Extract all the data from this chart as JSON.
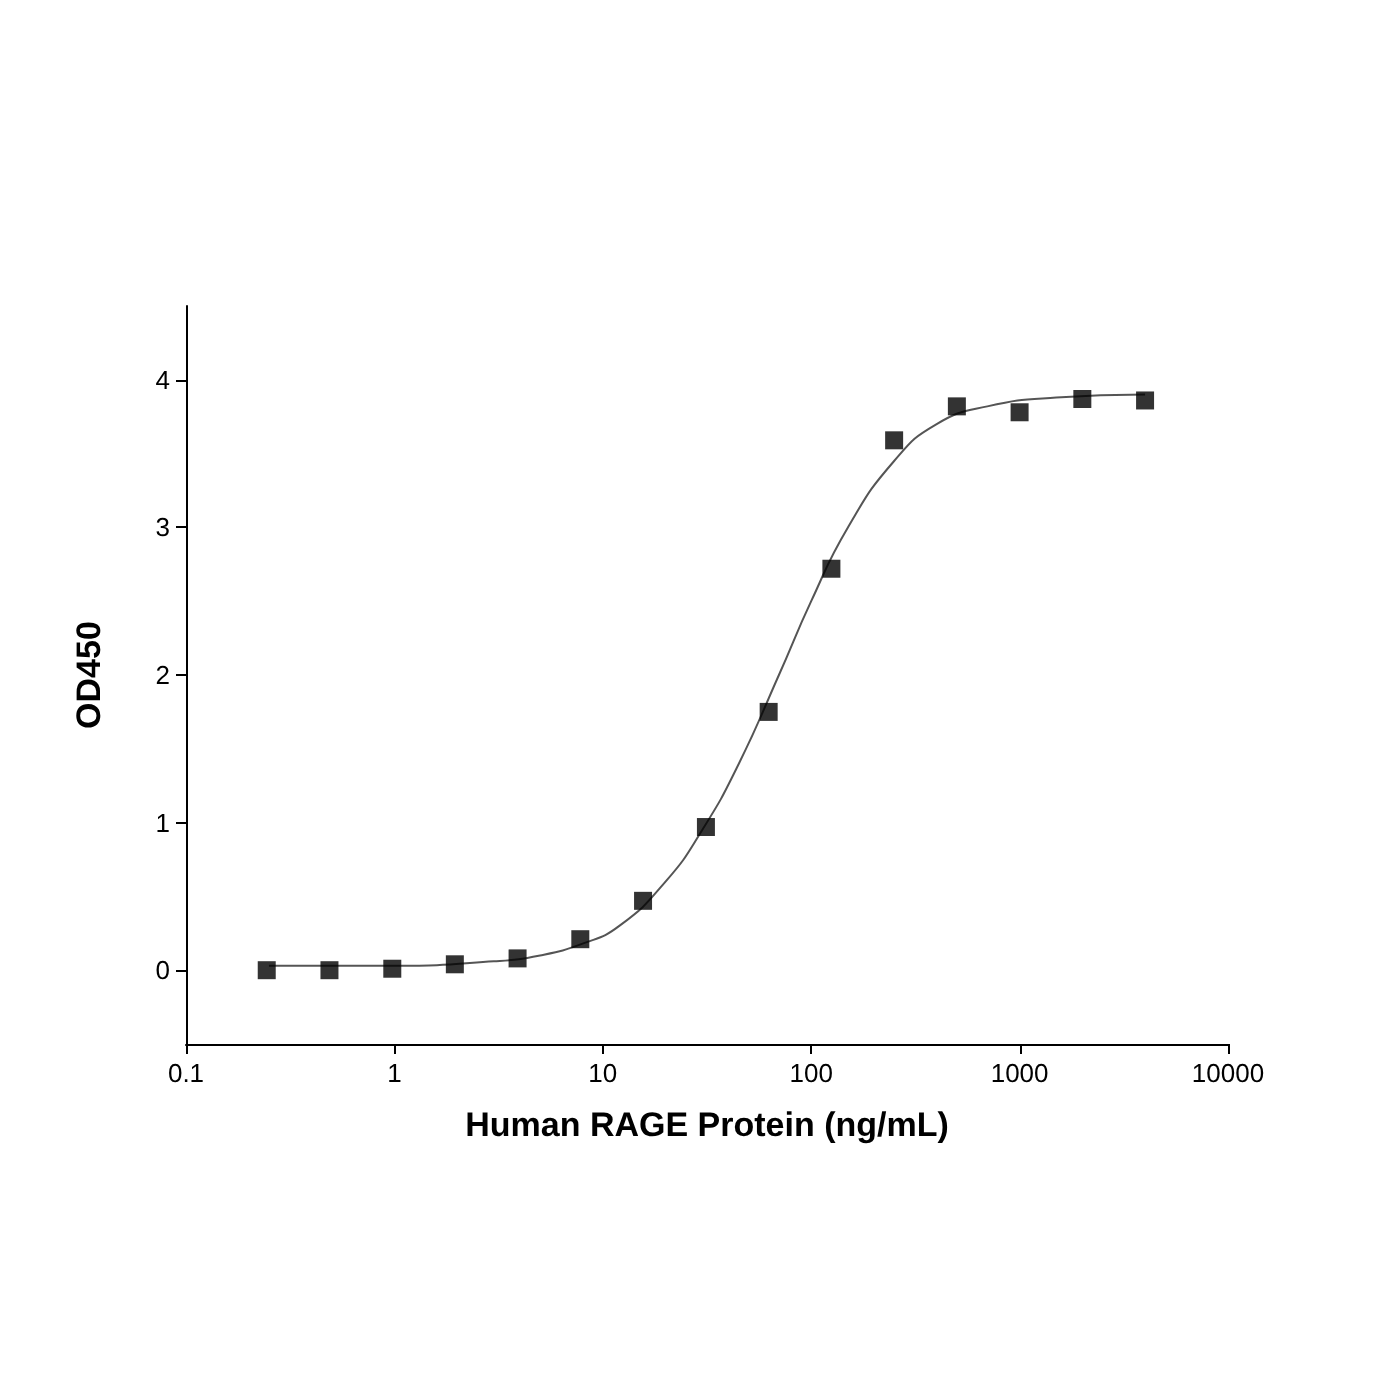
{
  "chart_data": {
    "type": "scatter",
    "xlabel": "Human RAGE Protein (ng/mL)",
    "ylabel": "OD450",
    "log": "x",
    "marker": "square",
    "grid": false,
    "xlim": [
      0.1,
      10000
    ],
    "xticks": [
      0.1,
      1,
      10,
      100,
      1000,
      10000
    ],
    "ylim": [
      -0.5,
      4.5
    ],
    "yticks": [
      0,
      1,
      2,
      3,
      4
    ],
    "x": [
      0.244,
      0.488,
      0.977,
      1.95,
      3.9,
      7.8,
      15.6,
      31.25,
      62.5,
      125,
      250,
      500,
      1000,
      2000,
      4000
    ],
    "series": [
      {
        "color": "#000000",
        "values": [
          0.0,
          0.0,
          0.01,
          0.04,
          0.08,
          0.21,
          0.47,
          0.97,
          1.75,
          2.72,
          3.59,
          3.82,
          3.78,
          3.87,
          3.86
        ]
      },
      {
        "type": "line",
        "color": "#555555",
        "marker": "none",
        "line_style": "solid",
        "x": [
          0.25,
          1,
          3,
          5,
          8,
          12,
          20,
          30,
          45,
          70,
          100,
          150,
          250,
          400,
          700,
          1500,
          4000
        ],
        "values": [
          0.03,
          0.03,
          0.06,
          0.1,
          0.18,
          0.3,
          0.6,
          0.95,
          1.4,
          2.0,
          2.5,
          3.0,
          3.45,
          3.7,
          3.82,
          3.88,
          3.9
        ]
      }
    ]
  }
}
